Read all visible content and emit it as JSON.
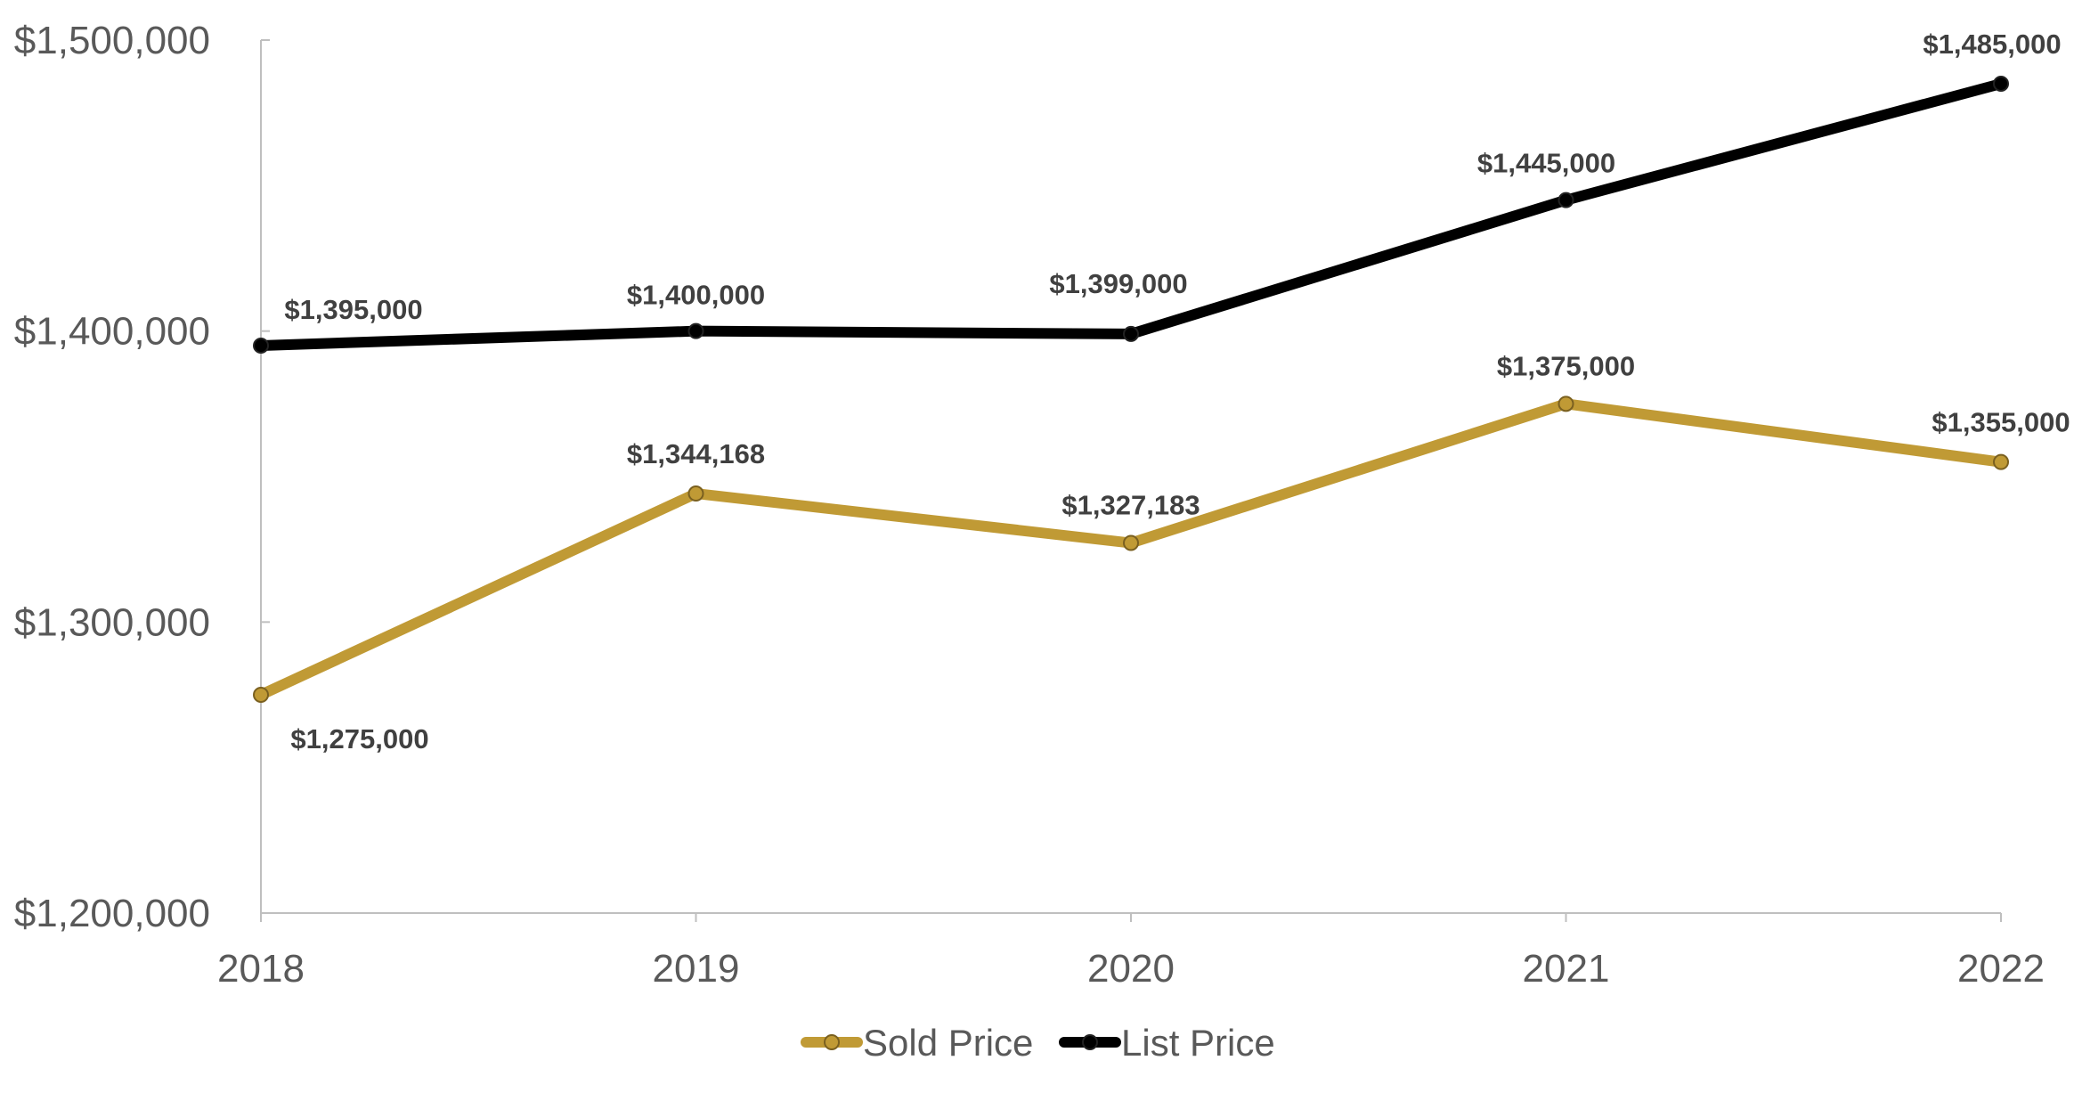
{
  "chart_data": {
    "type": "line",
    "title": "",
    "xlabel": "",
    "ylabel": "",
    "categories": [
      "2018",
      "2019",
      "2020",
      "2021",
      "2022"
    ],
    "ylim": [
      1200000,
      1500000
    ],
    "yticks": [
      1200000,
      1300000,
      1400000,
      1500000
    ],
    "ytick_labels": [
      "$1,200,000",
      "$1,300,000",
      "$1,400,000",
      "$1,500,000"
    ],
    "grid": false,
    "legend_position": "bottom",
    "series": [
      {
        "name": "Sold Price",
        "color": "#C09A35",
        "values": [
          1275000,
          1344168,
          1327183,
          1375000,
          1355000
        ],
        "labels": [
          "$1,275,000",
          "$1,344,168",
          "$1,327,183",
          "$1,375,000",
          "$1,355,000"
        ]
      },
      {
        "name": "List Price",
        "color": "#000000",
        "values": [
          1395000,
          1400000,
          1399000,
          1445000,
          1485000
        ],
        "labels": [
          "$1,395,000",
          "$1,400,000",
          "$1,399,000",
          "$1,445,000",
          "$1,485,000"
        ]
      }
    ]
  }
}
